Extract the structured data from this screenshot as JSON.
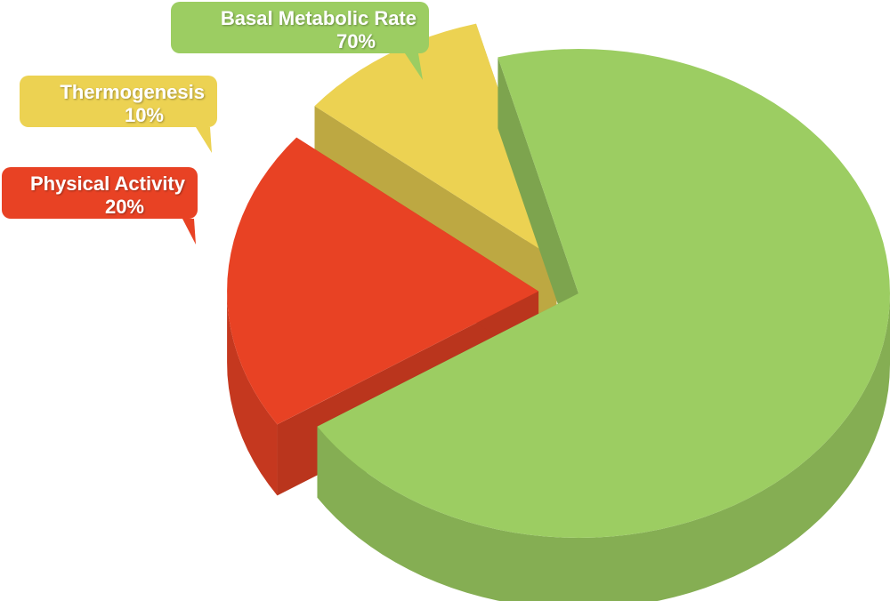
{
  "chart_data": {
    "type": "pie3d",
    "categories": [
      "Basal Metabolic Rate",
      "Thermogenesis",
      "Physical Activity"
    ],
    "values": [
      70,
      10,
      20
    ],
    "value_labels": [
      "70%",
      "10%",
      "20%"
    ],
    "colors": [
      "#9ccd62",
      "#ecd252",
      "#e84224"
    ]
  }
}
